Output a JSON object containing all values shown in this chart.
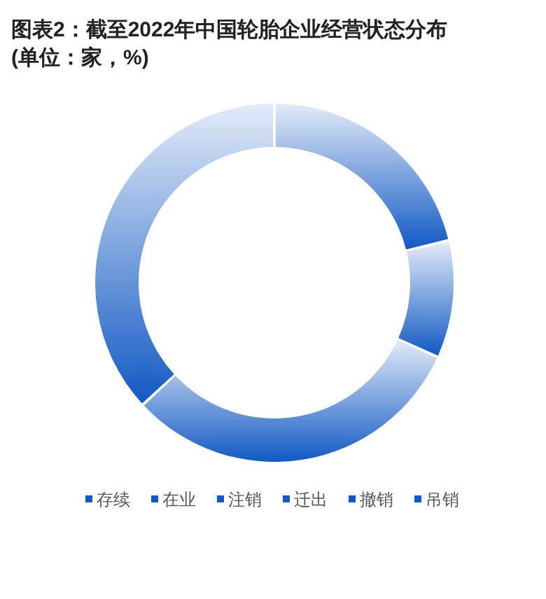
{
  "chart_data": {
    "type": "donut",
    "title": "图表2：截至2022年中国轮胎企业经营状态分布",
    "subtitle": "(单位：家，%)",
    "categories": [
      "存续",
      "在业",
      "注销",
      "迁出",
      "撤销",
      "吊销"
    ],
    "values": [
      21.2,
      10.6,
      31.3,
      36.9,
      0,
      0
    ],
    "colors": [
      "#1159c4",
      "#1159c4",
      "#1159c4",
      "#1159c4",
      "#1159c4",
      "#1159c4"
    ],
    "legend": "bottom"
  }
}
